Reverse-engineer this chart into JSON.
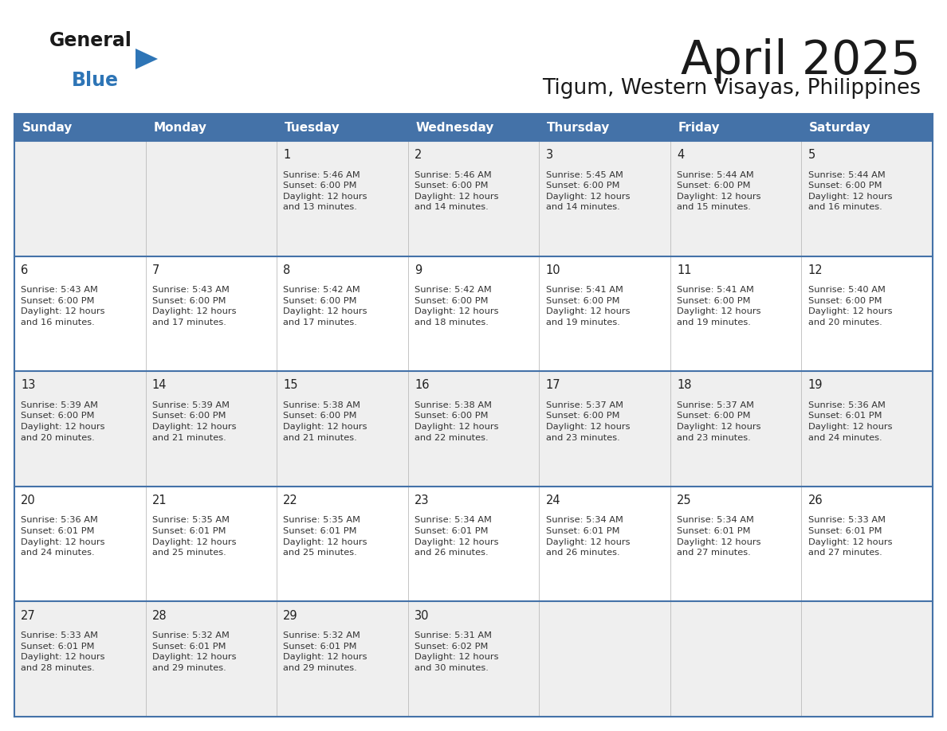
{
  "title": "April 2025",
  "subtitle": "Tigum, Western Visayas, Philippines",
  "days_of_week": [
    "Sunday",
    "Monday",
    "Tuesday",
    "Wednesday",
    "Thursday",
    "Friday",
    "Saturday"
  ],
  "header_bg": "#4472A8",
  "header_text_color": "#FFFFFF",
  "cell_text_color": "#333333",
  "border_color": "#4472A8",
  "general_blue_color": "#2e75b6",
  "calendar_data": [
    [
      null,
      null,
      {
        "day": 1,
        "sunrise": "5:46 AM",
        "sunset": "6:00 PM",
        "daylight": "12 hours and 13 minutes."
      },
      {
        "day": 2,
        "sunrise": "5:46 AM",
        "sunset": "6:00 PM",
        "daylight": "12 hours and 14 minutes."
      },
      {
        "day": 3,
        "sunrise": "5:45 AM",
        "sunset": "6:00 PM",
        "daylight": "12 hours and 14 minutes."
      },
      {
        "day": 4,
        "sunrise": "5:44 AM",
        "sunset": "6:00 PM",
        "daylight": "12 hours and 15 minutes."
      },
      {
        "day": 5,
        "sunrise": "5:44 AM",
        "sunset": "6:00 PM",
        "daylight": "12 hours and 16 minutes."
      }
    ],
    [
      {
        "day": 6,
        "sunrise": "5:43 AM",
        "sunset": "6:00 PM",
        "daylight": "12 hours and 16 minutes."
      },
      {
        "day": 7,
        "sunrise": "5:43 AM",
        "sunset": "6:00 PM",
        "daylight": "12 hours and 17 minutes."
      },
      {
        "day": 8,
        "sunrise": "5:42 AM",
        "sunset": "6:00 PM",
        "daylight": "12 hours and 17 minutes."
      },
      {
        "day": 9,
        "sunrise": "5:42 AM",
        "sunset": "6:00 PM",
        "daylight": "12 hours and 18 minutes."
      },
      {
        "day": 10,
        "sunrise": "5:41 AM",
        "sunset": "6:00 PM",
        "daylight": "12 hours and 19 minutes."
      },
      {
        "day": 11,
        "sunrise": "5:41 AM",
        "sunset": "6:00 PM",
        "daylight": "12 hours and 19 minutes."
      },
      {
        "day": 12,
        "sunrise": "5:40 AM",
        "sunset": "6:00 PM",
        "daylight": "12 hours and 20 minutes."
      }
    ],
    [
      {
        "day": 13,
        "sunrise": "5:39 AM",
        "sunset": "6:00 PM",
        "daylight": "12 hours and 20 minutes."
      },
      {
        "day": 14,
        "sunrise": "5:39 AM",
        "sunset": "6:00 PM",
        "daylight": "12 hours and 21 minutes."
      },
      {
        "day": 15,
        "sunrise": "5:38 AM",
        "sunset": "6:00 PM",
        "daylight": "12 hours and 21 minutes."
      },
      {
        "day": 16,
        "sunrise": "5:38 AM",
        "sunset": "6:00 PM",
        "daylight": "12 hours and 22 minutes."
      },
      {
        "day": 17,
        "sunrise": "5:37 AM",
        "sunset": "6:00 PM",
        "daylight": "12 hours and 23 minutes."
      },
      {
        "day": 18,
        "sunrise": "5:37 AM",
        "sunset": "6:00 PM",
        "daylight": "12 hours and 23 minutes."
      },
      {
        "day": 19,
        "sunrise": "5:36 AM",
        "sunset": "6:01 PM",
        "daylight": "12 hours and 24 minutes."
      }
    ],
    [
      {
        "day": 20,
        "sunrise": "5:36 AM",
        "sunset": "6:01 PM",
        "daylight": "12 hours and 24 minutes."
      },
      {
        "day": 21,
        "sunrise": "5:35 AM",
        "sunset": "6:01 PM",
        "daylight": "12 hours and 25 minutes."
      },
      {
        "day": 22,
        "sunrise": "5:35 AM",
        "sunset": "6:01 PM",
        "daylight": "12 hours and 25 minutes."
      },
      {
        "day": 23,
        "sunrise": "5:34 AM",
        "sunset": "6:01 PM",
        "daylight": "12 hours and 26 minutes."
      },
      {
        "day": 24,
        "sunrise": "5:34 AM",
        "sunset": "6:01 PM",
        "daylight": "12 hours and 26 minutes."
      },
      {
        "day": 25,
        "sunrise": "5:34 AM",
        "sunset": "6:01 PM",
        "daylight": "12 hours and 27 minutes."
      },
      {
        "day": 26,
        "sunrise": "5:33 AM",
        "sunset": "6:01 PM",
        "daylight": "12 hours and 27 minutes."
      }
    ],
    [
      {
        "day": 27,
        "sunrise": "5:33 AM",
        "sunset": "6:01 PM",
        "daylight": "12 hours and 28 minutes."
      },
      {
        "day": 28,
        "sunrise": "5:32 AM",
        "sunset": "6:01 PM",
        "daylight": "12 hours and 29 minutes."
      },
      {
        "day": 29,
        "sunrise": "5:32 AM",
        "sunset": "6:01 PM",
        "daylight": "12 hours and 29 minutes."
      },
      {
        "day": 30,
        "sunrise": "5:31 AM",
        "sunset": "6:02 PM",
        "daylight": "12 hours and 30 minutes."
      },
      null,
      null,
      null
    ]
  ]
}
